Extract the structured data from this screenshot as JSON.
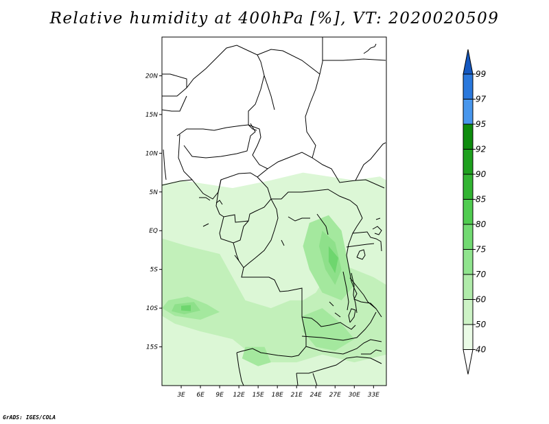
{
  "title": "Relative humidity at 400hPa [%], VT: 2020020509",
  "credit": "GrADS: IGES/COLA",
  "chart_data": {
    "type": "heatmap",
    "title": "Relative humidity at 400hPa [%], VT: 2020020509",
    "xlim": [
      0,
      35
    ],
    "ylim": [
      -20,
      25
    ],
    "x_ticks": [
      {
        "value": 3,
        "label": "3E"
      },
      {
        "value": 6,
        "label": "6E"
      },
      {
        "value": 9,
        "label": "9E"
      },
      {
        "value": 12,
        "label": "12E"
      },
      {
        "value": 15,
        "label": "15E"
      },
      {
        "value": 18,
        "label": "18E"
      },
      {
        "value": 21,
        "label": "21E"
      },
      {
        "value": 24,
        "label": "24E"
      },
      {
        "value": 27,
        "label": "27E"
      },
      {
        "value": 30,
        "label": "30E"
      },
      {
        "value": 33,
        "label": "33E"
      }
    ],
    "y_ticks": [
      {
        "value": 20,
        "label": "20N"
      },
      {
        "value": 15,
        "label": "15N"
      },
      {
        "value": 10,
        "label": "10N"
      },
      {
        "value": 5,
        "label": "5N"
      },
      {
        "value": 0,
        "label": "EQ"
      },
      {
        "value": -5,
        "label": "5S"
      },
      {
        "value": -10,
        "label": "10S"
      },
      {
        "value": -15,
        "label": "15S"
      }
    ],
    "colorbar": {
      "levels": [
        "40",
        "50",
        "60",
        "70",
        "75",
        "80",
        "85",
        "90",
        "92",
        "95",
        "97",
        "99"
      ],
      "colors": [
        "#ffffff",
        "#eafbe6",
        "#cdf3c6",
        "#b0ebaa",
        "#90e48e",
        "#72da72",
        "#50cc50",
        "#32b432",
        "#1ea01e",
        "#0e8c0e",
        "#4896ec",
        "#2a78dc",
        "#1458c0"
      ]
    },
    "humid_regions": [
      {
        "level": "50",
        "color": "#dcf7d6",
        "lon_lat": [
          [
            0,
            6
          ],
          [
            3,
            6.5
          ],
          [
            7,
            6
          ],
          [
            11,
            5.5
          ],
          [
            14,
            6
          ],
          [
            17,
            6.5
          ],
          [
            22,
            7.5
          ],
          [
            26,
            7
          ],
          [
            30,
            6.5
          ],
          [
            34,
            7
          ],
          [
            35,
            6.5
          ],
          [
            35,
            -20
          ],
          [
            0,
            -20
          ]
        ]
      },
      {
        "level": "60",
        "color": "#c2f0ba",
        "lon_lat": [
          [
            0,
            -1
          ],
          [
            4,
            -2
          ],
          [
            9,
            -3
          ],
          [
            11,
            -6
          ],
          [
            13,
            -9
          ],
          [
            17,
            -10
          ],
          [
            20,
            -9
          ],
          [
            22,
            -9
          ],
          [
            24,
            -8
          ],
          [
            27,
            -4
          ],
          [
            30,
            -5
          ],
          [
            33,
            -6
          ],
          [
            35,
            -7
          ],
          [
            35,
            -16
          ],
          [
            30,
            -17
          ],
          [
            25,
            -16
          ],
          [
            21,
            -17
          ],
          [
            17,
            -17
          ],
          [
            14,
            -16
          ],
          [
            11,
            -14
          ],
          [
            6,
            -13
          ],
          [
            2,
            -12
          ],
          [
            0,
            -11
          ]
        ]
      },
      {
        "level": "70",
        "color": "#a4e89e",
        "lon_lat": [
          [
            23,
            1
          ],
          [
            26,
            2
          ],
          [
            28,
            0
          ],
          [
            29,
            -4
          ],
          [
            30,
            -7
          ],
          [
            28,
            -9
          ],
          [
            25,
            -8
          ],
          [
            23,
            -5
          ],
          [
            22,
            -2
          ]
        ]
      },
      {
        "level": "70",
        "color": "#a4e89e",
        "lon_lat": [
          [
            1,
            -9
          ],
          [
            4,
            -8.5
          ],
          [
            7,
            -9.5
          ],
          [
            9,
            -10.5
          ],
          [
            6,
            -11.5
          ],
          [
            2,
            -11
          ],
          [
            0,
            -10
          ]
        ]
      },
      {
        "level": "70",
        "color": "#a4e89e",
        "lon_lat": [
          [
            22,
            -11
          ],
          [
            25,
            -10
          ],
          [
            28,
            -12
          ],
          [
            30,
            -14
          ],
          [
            27,
            -15.5
          ],
          [
            24,
            -15
          ],
          [
            22,
            -13
          ]
        ]
      },
      {
        "level": "70",
        "color": "#a4e89e",
        "lon_lat": [
          [
            13,
            -15
          ],
          [
            16,
            -15
          ],
          [
            17,
            -17
          ],
          [
            15,
            -17.5
          ],
          [
            12.5,
            -16.5
          ]
        ]
      },
      {
        "level": "75",
        "color": "#8ee08a",
        "lon_lat": [
          [
            25,
            0
          ],
          [
            27,
            -1.5
          ],
          [
            28,
            -5
          ],
          [
            27,
            -7
          ],
          [
            25.5,
            -5
          ],
          [
            24.5,
            -2
          ]
        ]
      },
      {
        "level": "75",
        "color": "#8ee08a",
        "lon_lat": [
          [
            2,
            -9.5
          ],
          [
            5,
            -9.2
          ],
          [
            6,
            -10.3
          ],
          [
            3.5,
            -10.8
          ],
          [
            1.5,
            -10.4
          ]
        ]
      },
      {
        "level": "80",
        "color": "#6ed66e",
        "lon_lat": [
          [
            26,
            -2
          ],
          [
            27.5,
            -3.5
          ],
          [
            27,
            -5.5
          ],
          [
            26,
            -4
          ]
        ]
      },
      {
        "level": "80",
        "color": "#6ed66e",
        "lon_lat": [
          [
            3,
            -9.7
          ],
          [
            4.5,
            -9.6
          ],
          [
            4.5,
            -10.4
          ],
          [
            3,
            -10.3
          ]
        ]
      }
    ]
  }
}
